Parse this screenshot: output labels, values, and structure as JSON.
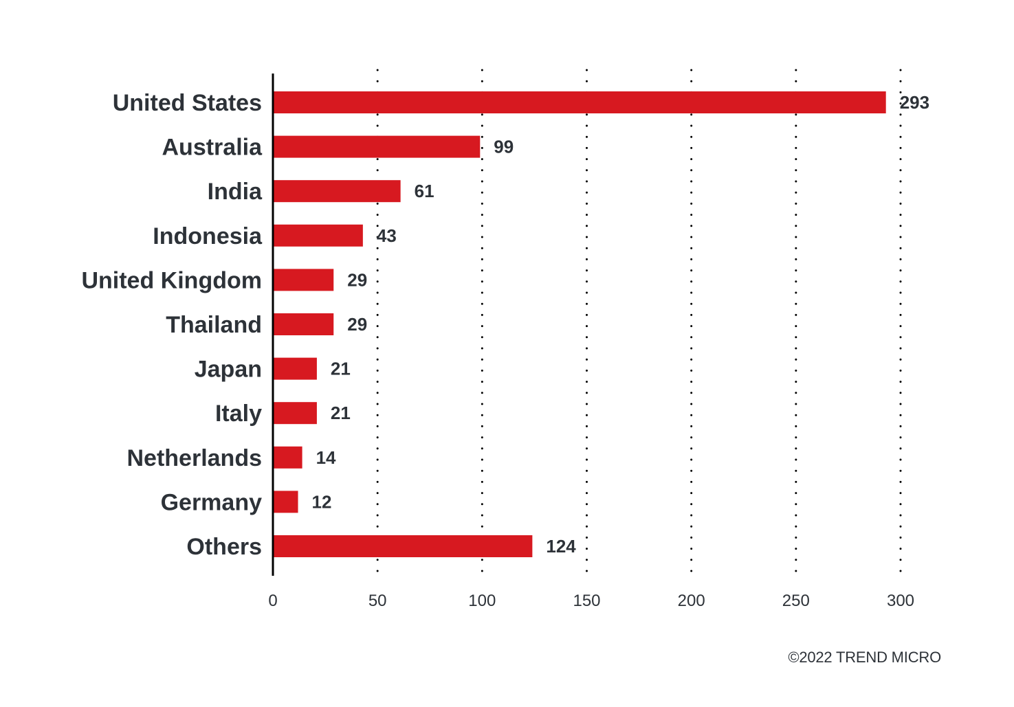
{
  "chart_data": {
    "type": "bar",
    "orientation": "horizontal",
    "categories": [
      "United States",
      "Australia",
      "India",
      "Indonesia",
      "United Kingdom",
      "Thailand",
      "Japan",
      "Italy",
      "Netherlands",
      "Germany",
      "Others"
    ],
    "values": [
      293,
      99,
      61,
      43,
      29,
      29,
      21,
      21,
      14,
      12,
      124
    ],
    "value_labels": [
      "293",
      "99",
      "61",
      "43",
      "29",
      "29",
      "21",
      "21",
      "14",
      "12",
      "124"
    ],
    "x_ticks": [
      "0",
      "50",
      "100",
      "150",
      "200",
      "250",
      "300"
    ],
    "xlim": [
      0,
      300
    ],
    "grid": "dotted vertical",
    "bar_color": "#d71920",
    "text_color": "#2d3238",
    "axis_color": "#000000"
  },
  "footer": {
    "copyright": "©2022 TREND MICRO"
  }
}
